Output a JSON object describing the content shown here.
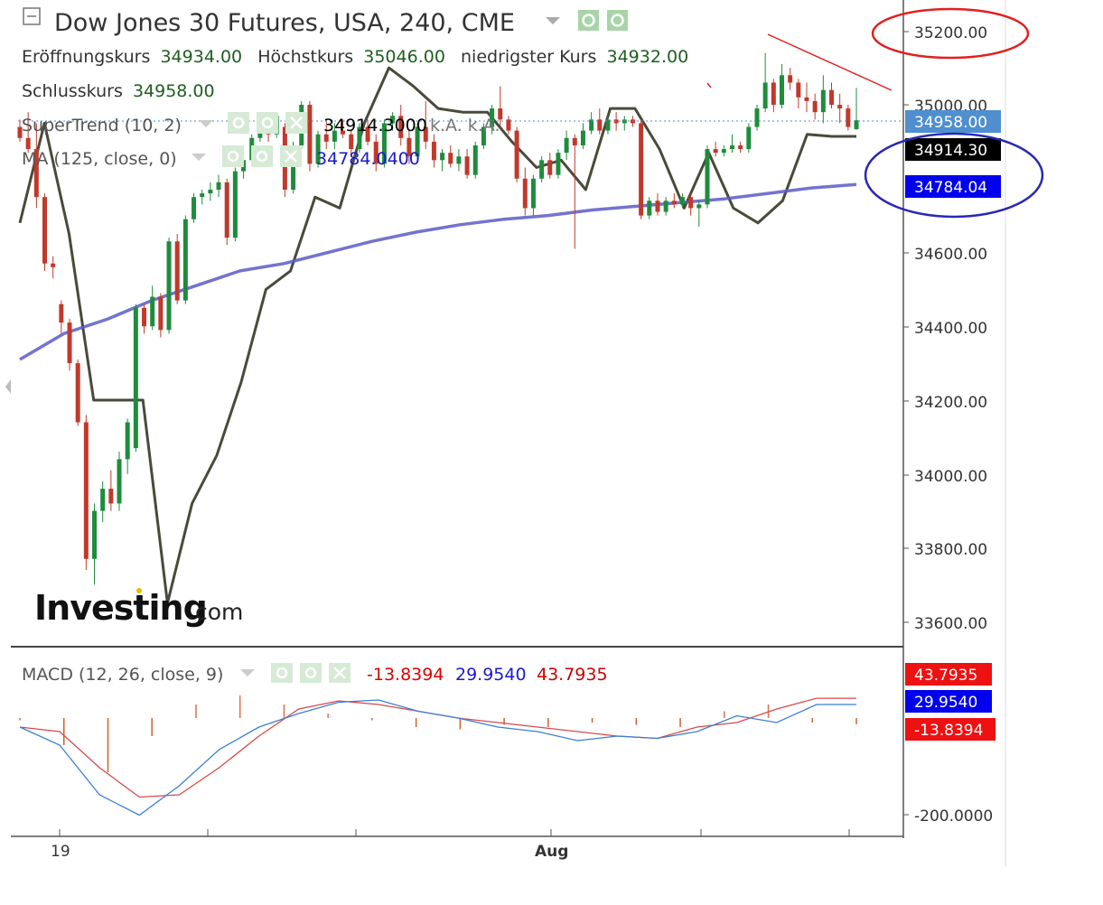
{
  "header": {
    "title": "Dow Jones 30 Futures, USA, 240, CME",
    "open_label": "Eröffnungskurs",
    "open_value": "34934.00",
    "high_label": "Höchstkurs",
    "high_value": "35046.00",
    "low_label": "niedrigster Kurs",
    "low_value": "34932.00",
    "close_label": "Schlusskurs",
    "close_value": "34958.00"
  },
  "indicators": {
    "supertrend_label": "SuperTrend (10, 2)",
    "supertrend_value": "34914.3000",
    "supertrend_extra": "k.A. k.A.",
    "ma_label": "MA (125, close, 0)",
    "ma_value": "34784.0400",
    "macd_label": "MACD (12, 26, close, 9)",
    "macd_hist_value": "-13.8394",
    "macd_value": "29.9540",
    "macd_signal_value": "43.7935"
  },
  "colors": {
    "bull": "#1e8c3c",
    "bear": "#c0392b",
    "supertrend": "#4a4a3a",
    "ma": "#5a5ac8",
    "macd_line": "#3b7fd4",
    "signal_line": "#d94a4a",
    "last_price_tag": "#4f8fcf",
    "supertrend_tag": "#000000",
    "ma_tag": "#0000ee",
    "annotation_red": "#e02020",
    "annotation_blue": "#2828b4"
  },
  "price_axis": {
    "ticks": [
      "35200.00",
      "35000.00",
      "34600.00",
      "34400.00",
      "34200.00",
      "34000.00",
      "33800.00",
      "33600.00"
    ],
    "tags": {
      "last_price": "34958.00",
      "supertrend": "34914.30",
      "ma": "34784.04"
    }
  },
  "macd_axis": {
    "ticks": [
      "-200.0000"
    ],
    "tags": {
      "signal": "43.7935",
      "macd": "29.9540",
      "histogram": "-13.8394"
    }
  },
  "time_axis": {
    "labels": [
      "19",
      "Aug"
    ]
  },
  "logo": {
    "brand": "Investing",
    "domain": ".com"
  },
  "chart_data": {
    "type": "candlestick",
    "title": "Dow Jones 30 Futures, USA, 240, CME",
    "price_range": [
      33520,
      35300
    ],
    "macd_range": [
      -220,
      55
    ],
    "candles": [
      {
        "o": 34940,
        "h": 34960,
        "l": 34900,
        "c": 34910
      },
      {
        "o": 34910,
        "h": 34980,
        "l": 34870,
        "c": 34880
      },
      {
        "o": 34880,
        "h": 34950,
        "l": 34720,
        "c": 34750
      },
      {
        "o": 34750,
        "h": 34760,
        "l": 34550,
        "c": 34570
      },
      {
        "o": 34570,
        "h": 34590,
        "l": 34530,
        "c": 34560
      },
      {
        "o": 34460,
        "h": 34470,
        "l": 34380,
        "c": 34410
      },
      {
        "o": 34410,
        "h": 34420,
        "l": 34280,
        "c": 34300
      },
      {
        "o": 34300,
        "h": 34310,
        "l": 34130,
        "c": 34140
      },
      {
        "o": 34140,
        "h": 34160,
        "l": 33740,
        "c": 33770
      },
      {
        "o": 33770,
        "h": 33920,
        "l": 33700,
        "c": 33900
      },
      {
        "o": 33900,
        "h": 33980,
        "l": 33870,
        "c": 33960
      },
      {
        "o": 33960,
        "h": 34010,
        "l": 33900,
        "c": 33920
      },
      {
        "o": 33920,
        "h": 34060,
        "l": 33900,
        "c": 34040
      },
      {
        "o": 34040,
        "h": 34150,
        "l": 34000,
        "c": 34140
      },
      {
        "o": 34070,
        "h": 34460,
        "l": 34060,
        "c": 34450
      },
      {
        "o": 34450,
        "h": 34460,
        "l": 34380,
        "c": 34400
      },
      {
        "o": 34400,
        "h": 34510,
        "l": 34390,
        "c": 34480
      },
      {
        "o": 34480,
        "h": 34490,
        "l": 34370,
        "c": 34390
      },
      {
        "o": 34390,
        "h": 34640,
        "l": 34380,
        "c": 34630
      },
      {
        "o": 34630,
        "h": 34650,
        "l": 34460,
        "c": 34470
      },
      {
        "o": 34470,
        "h": 34700,
        "l": 34460,
        "c": 34690
      },
      {
        "o": 34690,
        "h": 34760,
        "l": 34680,
        "c": 34750
      },
      {
        "o": 34750,
        "h": 34770,
        "l": 34730,
        "c": 34760
      },
      {
        "o": 34760,
        "h": 34790,
        "l": 34740,
        "c": 34770
      },
      {
        "o": 34770,
        "h": 34810,
        "l": 34750,
        "c": 34790
      },
      {
        "o": 34790,
        "h": 34800,
        "l": 34620,
        "c": 34640
      },
      {
        "o": 34640,
        "h": 34830,
        "l": 34630,
        "c": 34820
      },
      {
        "o": 34820,
        "h": 34860,
        "l": 34800,
        "c": 34850
      },
      {
        "o": 34850,
        "h": 34920,
        "l": 34840,
        "c": 34910
      },
      {
        "o": 34910,
        "h": 34970,
        "l": 34900,
        "c": 34950
      },
      {
        "o": 34950,
        "h": 34960,
        "l": 34900,
        "c": 34920
      },
      {
        "o": 34920,
        "h": 34980,
        "l": 34910,
        "c": 34970
      },
      {
        "o": 34940,
        "h": 34950,
        "l": 34750,
        "c": 34770
      },
      {
        "o": 34770,
        "h": 34900,
        "l": 34760,
        "c": 34890
      },
      {
        "o": 34890,
        "h": 35010,
        "l": 34880,
        "c": 35000
      },
      {
        "o": 35000,
        "h": 35010,
        "l": 34820,
        "c": 34840
      },
      {
        "o": 34840,
        "h": 34930,
        "l": 34830,
        "c": 34920
      },
      {
        "o": 34920,
        "h": 34960,
        "l": 34880,
        "c": 34900
      },
      {
        "o": 34900,
        "h": 34950,
        "l": 34880,
        "c": 34930
      },
      {
        "o": 34930,
        "h": 34960,
        "l": 34910,
        "c": 34920
      },
      {
        "o": 34920,
        "h": 34930,
        "l": 34860,
        "c": 34880
      },
      {
        "o": 34880,
        "h": 34950,
        "l": 34870,
        "c": 34940
      },
      {
        "o": 34940,
        "h": 34960,
        "l": 34890,
        "c": 34900
      },
      {
        "o": 34900,
        "h": 34920,
        "l": 34820,
        "c": 34840
      },
      {
        "o": 34840,
        "h": 34960,
        "l": 34830,
        "c": 34950
      },
      {
        "o": 34950,
        "h": 34980,
        "l": 34930,
        "c": 34970
      },
      {
        "o": 34970,
        "h": 35000,
        "l": 34890,
        "c": 34910
      },
      {
        "o": 34910,
        "h": 34930,
        "l": 34840,
        "c": 34860
      },
      {
        "o": 34860,
        "h": 34950,
        "l": 34850,
        "c": 34940
      },
      {
        "o": 34940,
        "h": 35010,
        "l": 34880,
        "c": 34900
      },
      {
        "o": 34900,
        "h": 34920,
        "l": 34830,
        "c": 34850
      },
      {
        "o": 34850,
        "h": 34880,
        "l": 34820,
        "c": 34870
      },
      {
        "o": 34870,
        "h": 34890,
        "l": 34830,
        "c": 34840
      },
      {
        "o": 34840,
        "h": 34880,
        "l": 34820,
        "c": 34860
      },
      {
        "o": 34860,
        "h": 34880,
        "l": 34800,
        "c": 34810
      },
      {
        "o": 34810,
        "h": 34900,
        "l": 34800,
        "c": 34890
      },
      {
        "o": 34890,
        "h": 34950,
        "l": 34880,
        "c": 34940
      },
      {
        "o": 34940,
        "h": 35000,
        "l": 34920,
        "c": 34990
      },
      {
        "o": 34990,
        "h": 35050,
        "l": 34940,
        "c": 34960
      },
      {
        "o": 34960,
        "h": 34970,
        "l": 34920,
        "c": 34930
      },
      {
        "o": 34930,
        "h": 34940,
        "l": 34790,
        "c": 34800
      },
      {
        "o": 34800,
        "h": 34830,
        "l": 34700,
        "c": 34720
      },
      {
        "o": 34720,
        "h": 34810,
        "l": 34700,
        "c": 34800
      },
      {
        "o": 34800,
        "h": 34860,
        "l": 34790,
        "c": 34850
      },
      {
        "o": 34850,
        "h": 34870,
        "l": 34800,
        "c": 34810
      },
      {
        "o": 34810,
        "h": 34880,
        "l": 34800,
        "c": 34870
      },
      {
        "o": 34870,
        "h": 34930,
        "l": 34850,
        "c": 34910
      },
      {
        "o": 34910,
        "h": 34920,
        "l": 34610,
        "c": 34890
      },
      {
        "o": 34890,
        "h": 34950,
        "l": 34880,
        "c": 34930
      },
      {
        "o": 34930,
        "h": 34980,
        "l": 34920,
        "c": 34960
      },
      {
        "o": 34960,
        "h": 34990,
        "l": 34920,
        "c": 34930
      },
      {
        "o": 34930,
        "h": 34970,
        "l": 34920,
        "c": 34960
      },
      {
        "o": 34960,
        "h": 34980,
        "l": 34930,
        "c": 34950
      },
      {
        "o": 34950,
        "h": 34970,
        "l": 34930,
        "c": 34960
      },
      {
        "o": 34960,
        "h": 34970,
        "l": 34940,
        "c": 34950
      },
      {
        "o": 34950,
        "h": 34960,
        "l": 34690,
        "c": 34700
      },
      {
        "o": 34700,
        "h": 34750,
        "l": 34690,
        "c": 34740
      },
      {
        "o": 34740,
        "h": 34760,
        "l": 34700,
        "c": 34710
      },
      {
        "o": 34710,
        "h": 34750,
        "l": 34700,
        "c": 34740
      },
      {
        "o": 34740,
        "h": 34760,
        "l": 34720,
        "c": 34730
      },
      {
        "o": 34730,
        "h": 34760,
        "l": 34720,
        "c": 34750
      },
      {
        "o": 34750,
        "h": 34760,
        "l": 34700,
        "c": 34720
      },
      {
        "o": 34720,
        "h": 34740,
        "l": 34670,
        "c": 34730
      },
      {
        "o": 34730,
        "h": 34890,
        "l": 34720,
        "c": 34880
      },
      {
        "o": 34880,
        "h": 34900,
        "l": 34860,
        "c": 34870
      },
      {
        "o": 34870,
        "h": 34890,
        "l": 34860,
        "c": 34880
      },
      {
        "o": 34880,
        "h": 34920,
        "l": 34870,
        "c": 34890
      },
      {
        "o": 34890,
        "h": 34900,
        "l": 34870,
        "c": 34880
      },
      {
        "o": 34880,
        "h": 34950,
        "l": 34870,
        "c": 34940
      },
      {
        "o": 34940,
        "h": 35000,
        "l": 34930,
        "c": 34990
      },
      {
        "o": 34990,
        "h": 35140,
        "l": 34980,
        "c": 35060
      },
      {
        "o": 35060,
        "h": 35070,
        "l": 34980,
        "c": 35000
      },
      {
        "o": 35000,
        "h": 35110,
        "l": 34990,
        "c": 35080
      },
      {
        "o": 35080,
        "h": 35100,
        "l": 35040,
        "c": 35060
      },
      {
        "o": 35060,
        "h": 35070,
        "l": 34990,
        "c": 35020
      },
      {
        "o": 35020,
        "h": 35060,
        "l": 34980,
        "c": 35010
      },
      {
        "o": 35010,
        "h": 35030,
        "l": 34960,
        "c": 34980
      },
      {
        "o": 34980,
        "h": 35080,
        "l": 34950,
        "c": 35040
      },
      {
        "o": 35040,
        "h": 35060,
        "l": 34990,
        "c": 35000
      },
      {
        "o": 35000,
        "h": 35030,
        "l": 34950,
        "c": 34990
      },
      {
        "o": 34990,
        "h": 35000,
        "l": 34930,
        "c": 34940
      },
      {
        "o": 34934,
        "h": 35046,
        "l": 34932,
        "c": 34958
      }
    ],
    "supertrend": [
      34680,
      34950,
      34650,
      34200,
      34200,
      34200,
      33650,
      33920,
      34050,
      34250,
      34500,
      34550,
      34750,
      34720,
      34950,
      35100,
      35050,
      34990,
      34980,
      34980,
      34900,
      34830,
      34850,
      34770,
      34990,
      34990,
      34880,
      34720,
      34870,
      34720,
      34680,
      34740,
      34920,
      34914.3,
      34914.3
    ],
    "ma": [
      34310,
      34380,
      34420,
      34470,
      34510,
      34550,
      34570,
      34600,
      34630,
      34655,
      34675,
      34690,
      34700,
      34715,
      34725,
      34735,
      34745,
      34760,
      34775,
      34784.04
    ],
    "macd": {
      "macd": [
        -20,
        -60,
        -170,
        -215,
        -150,
        -70,
        -20,
        10,
        35,
        40,
        15,
        0,
        -20,
        -30,
        -50,
        -40,
        -45,
        -30,
        5,
        -10,
        30,
        29.954
      ],
      "signal": [
        -20,
        -30,
        -110,
        -175,
        -170,
        -110,
        -40,
        20,
        38,
        30,
        15,
        0,
        -10,
        -20,
        -30,
        -40,
        -45,
        -20,
        -10,
        20,
        43.7935,
        43.7935
      ],
      "histogram": [
        -5,
        -60,
        -120,
        -40,
        30,
        50,
        30,
        10,
        -5,
        -20,
        -25,
        -15,
        -20,
        -10,
        -15,
        -20,
        15,
        30,
        -10,
        -13.8394
      ]
    }
  }
}
